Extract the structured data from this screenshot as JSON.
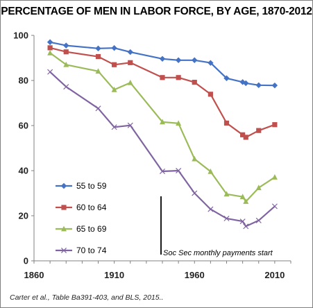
{
  "chart_data": {
    "type": "line",
    "title": "PERCENTAGE OF MEN IN LABOR FORCE, BY AGE, 1870-2012",
    "xlim": [
      1860,
      2020
    ],
    "ylim": [
      0,
      100
    ],
    "x_ticks": [
      "1860",
      "1910",
      "1960",
      "2010"
    ],
    "y_ticks": [
      "0",
      "20",
      "40",
      "60",
      "80",
      "100"
    ],
    "grid": false,
    "legend_position": "bottom-left inside",
    "series": [
      {
        "name": "55 to 59",
        "color": "#4472c4",
        "marker": "diamond",
        "x": [
          1870,
          1880,
          1900,
          1910,
          1920,
          1940,
          1950,
          1960,
          1970,
          1980,
          1990,
          1992,
          2000,
          2010
        ],
        "y": [
          97,
          95.5,
          94.2,
          94.4,
          92.6,
          89.6,
          89,
          89,
          87.8,
          81,
          79.3,
          78.8,
          77.9,
          77.8
        ]
      },
      {
        "name": "60 to 64",
        "color": "#c0504d",
        "marker": "square",
        "x": [
          1870,
          1880,
          1900,
          1910,
          1920,
          1940,
          1950,
          1960,
          1970,
          1980,
          1990,
          1992,
          2000,
          2010
        ],
        "y": [
          94.5,
          92.7,
          90.6,
          87,
          87.9,
          81.3,
          81.3,
          79.2,
          73.9,
          61.1,
          55.9,
          54.8,
          57.8,
          60.4
        ]
      },
      {
        "name": "65 to 69",
        "color": "#9bbb59",
        "marker": "triangle",
        "x": [
          1870,
          1880,
          1900,
          1910,
          1920,
          1940,
          1950,
          1960,
          1970,
          1980,
          1990,
          1992,
          2000,
          2010
        ],
        "y": [
          92.2,
          87,
          84.1,
          75.9,
          79,
          61.6,
          61,
          45.2,
          39.6,
          29.6,
          28.4,
          26.3,
          32.4,
          37.1
        ]
      },
      {
        "name": "70 to 74",
        "color": "#8064a2",
        "marker": "x",
        "x": [
          1870,
          1880,
          1900,
          1910,
          1920,
          1940,
          1950,
          1960,
          1970,
          1980,
          1990,
          1992,
          2000,
          2010
        ],
        "y": [
          83.8,
          77.2,
          67.6,
          59.3,
          60.1,
          39.7,
          40,
          30,
          22.9,
          18.8,
          17.5,
          15.3,
          17.9,
          24.2
        ]
      }
    ],
    "annotations": [
      {
        "text": "Soc Sec monthly payments start",
        "x": 1940
      }
    ],
    "source": "Carter et al., Table Ba391-403, and BLS, 2015.."
  }
}
